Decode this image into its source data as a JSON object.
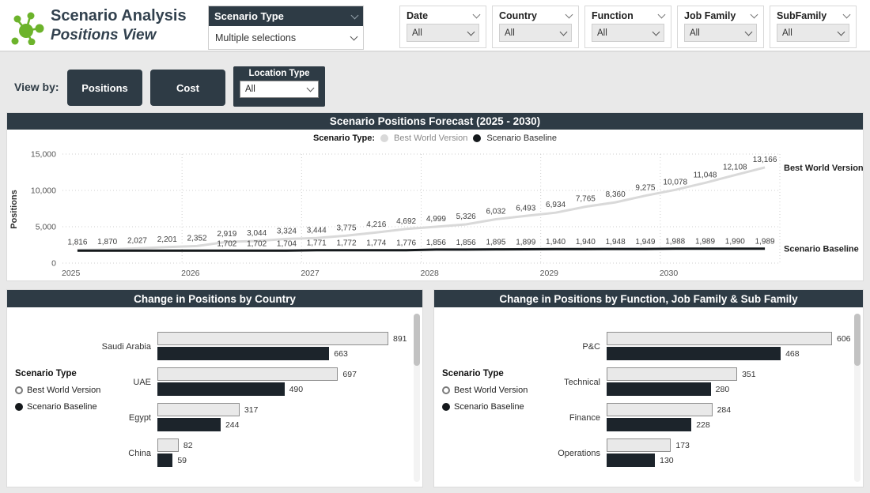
{
  "header": {
    "title": "Scenario Analysis",
    "subtitle": "Positions View",
    "scenario_type_slicer": {
      "label": "Scenario Type",
      "value": "Multiple selections"
    },
    "filters": [
      {
        "label": "Date",
        "value": "All"
      },
      {
        "label": "Country",
        "value": "All"
      },
      {
        "label": "Function",
        "value": "All"
      },
      {
        "label": "Job Family",
        "value": "All"
      },
      {
        "label": "SubFamily",
        "value": "All"
      }
    ]
  },
  "view_by": {
    "label": "View by:",
    "buttons": [
      "Positions",
      "Cost"
    ],
    "location_type": {
      "label": "Location Type",
      "value": "All"
    }
  },
  "colors": {
    "accent_green": "#6cb32b",
    "dark_slate": "#2e3b45",
    "bar_dark": "#1c242b",
    "bar_light": "#e9e9e9",
    "line_best_world": "#d9d9d9",
    "line_baseline": "#15191c"
  },
  "chart_data": [
    {
      "id": "forecast",
      "type": "line",
      "title": "Scenario Positions Forecast (2025 - 2030)",
      "legend_label": "Scenario Type:",
      "ylabel": "Positions",
      "yticks": [
        0,
        5000,
        10000,
        15000
      ],
      "ylim": [
        0,
        15000
      ],
      "x_years": [
        "2025",
        "2026",
        "2027",
        "2028",
        "2029",
        "2030"
      ],
      "points_per_year": 4,
      "grid": true,
      "series": [
        {
          "name": "Best World Version",
          "values": [
            1816,
            1870,
            2027,
            2201,
            2352,
            2919,
            3044,
            3324,
            3444,
            3775,
            4216,
            4692,
            4999,
            5326,
            6032,
            6493,
            6934,
            7765,
            8360,
            9275,
            10078,
            11048,
            12108,
            13166
          ]
        },
        {
          "name": "Scenario Baseline",
          "values": [
            null,
            null,
            null,
            null,
            null,
            1702,
            1702,
            1704,
            1771,
            1772,
            1774,
            1776,
            1856,
            1856,
            1895,
            1899,
            1940,
            1940,
            1948,
            1949,
            1988,
            1989,
            1990,
            1989
          ]
        }
      ]
    },
    {
      "id": "by_country",
      "type": "bar",
      "title": "Change in Positions by Country",
      "legend_title": "Scenario Type",
      "legend": [
        {
          "label": "Best World Version",
          "selected": false
        },
        {
          "label": "Scenario Baseline",
          "selected": true
        }
      ],
      "categories": [
        "Saudi Arabia",
        "UAE",
        "Egypt",
        "China"
      ],
      "series": [
        {
          "name": "Best World Version",
          "values": [
            891,
            697,
            317,
            82
          ]
        },
        {
          "name": "Scenario Baseline",
          "values": [
            663,
            490,
            244,
            59
          ]
        }
      ]
    },
    {
      "id": "by_function",
      "type": "bar",
      "title": "Change in Positions by Function, Job Family & Sub Family",
      "legend_title": "Scenario Type",
      "legend": [
        {
          "label": "Best World Version",
          "selected": false
        },
        {
          "label": "Scenario Baseline",
          "selected": true
        }
      ],
      "categories": [
        "P&C",
        "Technical",
        "Finance",
        "Operations"
      ],
      "series": [
        {
          "name": "Best World Version",
          "values": [
            606,
            351,
            284,
            173
          ]
        },
        {
          "name": "Scenario Baseline",
          "values": [
            468,
            280,
            228,
            130
          ]
        }
      ]
    }
  ]
}
